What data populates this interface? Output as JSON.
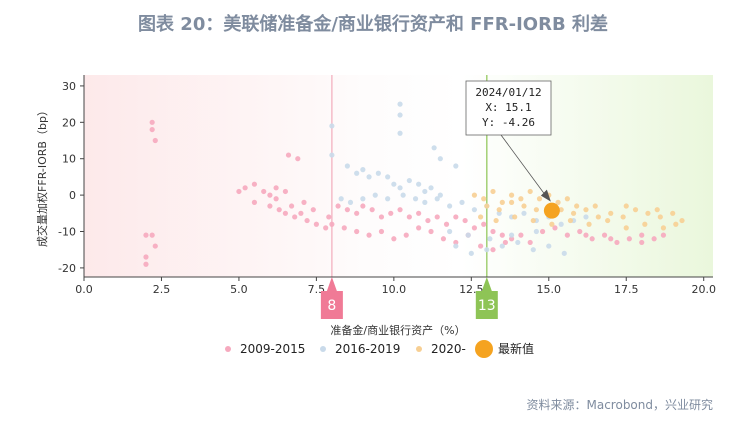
{
  "chart_data": {
    "type": "scatter",
    "title": "图表 20：美联储准备金/商业银行资产和 FFR-IORB 利差",
    "xlabel": "准备金/商业银行资产（%）",
    "ylabel": "成交量加权FFR-IORB（bp）",
    "xlim": [
      0,
      20.3
    ],
    "ylim": [
      -22.5,
      33
    ],
    "xticks": [
      "0.0",
      "2.5",
      "5.0",
      "7.5",
      "10.0",
      "12.5",
      "15.0",
      "17.5",
      "20.0"
    ],
    "yticks": [
      "30",
      "20",
      "10",
      "0",
      "-10",
      "-20"
    ],
    "grid": false,
    "legend_position": "bottom",
    "series": [
      {
        "name": "2009-2015",
        "color": "#f6a9be",
        "points": [
          [
            2.2,
            20
          ],
          [
            2.2,
            18
          ],
          [
            2.3,
            15
          ],
          [
            2.0,
            -11
          ],
          [
            2.2,
            -11
          ],
          [
            2.0,
            -17
          ],
          [
            2.0,
            -19
          ],
          [
            2.3,
            -14
          ],
          [
            5.0,
            1
          ],
          [
            5.2,
            2
          ],
          [
            5.5,
            3
          ],
          [
            5.8,
            1
          ],
          [
            6.0,
            0
          ],
          [
            6.2,
            2
          ],
          [
            6.5,
            1
          ],
          [
            6.6,
            11
          ],
          [
            6.9,
            10
          ],
          [
            5.5,
            -2
          ],
          [
            6.0,
            -3
          ],
          [
            6.3,
            -4
          ],
          [
            6.5,
            -5
          ],
          [
            6.8,
            -6
          ],
          [
            7.0,
            -5
          ],
          [
            7.2,
            -7
          ],
          [
            7.5,
            -8
          ],
          [
            7.8,
            -9
          ],
          [
            6.2,
            -1
          ],
          [
            6.7,
            -3
          ],
          [
            7.1,
            -2
          ],
          [
            7.4,
            -4
          ],
          [
            7.9,
            -6
          ],
          [
            8.0,
            -8
          ],
          [
            8.2,
            -3
          ],
          [
            8.5,
            -4
          ],
          [
            8.8,
            -5
          ],
          [
            9.0,
            -3
          ],
          [
            9.3,
            -4
          ],
          [
            9.6,
            -6
          ],
          [
            9.9,
            -5
          ],
          [
            10.2,
            -4
          ],
          [
            10.5,
            -6
          ],
          [
            10.8,
            -5
          ],
          [
            11.1,
            -7
          ],
          [
            11.4,
            -6
          ],
          [
            11.7,
            -8
          ],
          [
            12.0,
            -6
          ],
          [
            12.3,
            -7
          ],
          [
            12.6,
            -9
          ],
          [
            12.9,
            -8
          ],
          [
            13.2,
            -10
          ],
          [
            13.5,
            -11
          ],
          [
            13.8,
            -12
          ],
          [
            14.1,
            -11
          ],
          [
            14.4,
            -13
          ],
          [
            8.4,
            -9
          ],
          [
            8.8,
            -10
          ],
          [
            9.2,
            -11
          ],
          [
            9.6,
            -10
          ],
          [
            10.0,
            -12
          ],
          [
            10.4,
            -11
          ],
          [
            10.8,
            -9
          ],
          [
            11.2,
            -10
          ],
          [
            11.6,
            -12
          ],
          [
            12.0,
            -13
          ],
          [
            12.4,
            -11
          ],
          [
            12.8,
            -14
          ],
          [
            13.2,
            -15
          ],
          [
            13.6,
            -13
          ],
          [
            14.8,
            -10
          ],
          [
            15.2,
            -9
          ],
          [
            15.6,
            -11
          ],
          [
            16.0,
            -10
          ],
          [
            16.4,
            -12
          ],
          [
            16.8,
            -11
          ],
          [
            17.2,
            -13
          ],
          [
            17.6,
            -12
          ],
          [
            18.0,
            -11
          ],
          [
            18.4,
            -12
          ],
          [
            18.7,
            -11
          ],
          [
            18.0,
            -13
          ],
          [
            17.0,
            -12
          ],
          [
            16.2,
            -11
          ]
        ]
      },
      {
        "name": "2016-2019",
        "color": "#c9daea",
        "points": [
          [
            8.0,
            19
          ],
          [
            8.0,
            11
          ],
          [
            8.5,
            8
          ],
          [
            8.8,
            6
          ],
          [
            9.0,
            7
          ],
          [
            9.2,
            5
          ],
          [
            9.5,
            6
          ],
          [
            9.8,
            5
          ],
          [
            10.0,
            3
          ],
          [
            10.2,
            2
          ],
          [
            10.5,
            4
          ],
          [
            10.8,
            3
          ],
          [
            11.0,
            1
          ],
          [
            11.2,
            2
          ],
          [
            11.5,
            0
          ],
          [
            10.2,
            25
          ],
          [
            10.2,
            22
          ],
          [
            10.2,
            17
          ],
          [
            11.3,
            13
          ],
          [
            11.5,
            10
          ],
          [
            12.0,
            8
          ],
          [
            8.3,
            -1
          ],
          [
            8.6,
            -2
          ],
          [
            9.0,
            -1
          ],
          [
            9.4,
            0
          ],
          [
            9.8,
            -1
          ],
          [
            10.3,
            0
          ],
          [
            10.7,
            -1
          ],
          [
            11.0,
            -2
          ],
          [
            11.4,
            -1
          ],
          [
            11.8,
            -3
          ],
          [
            12.2,
            -2
          ],
          [
            12.6,
            -4
          ],
          [
            13.0,
            -3
          ],
          [
            13.4,
            -5
          ],
          [
            13.8,
            -6
          ],
          [
            14.2,
            -5
          ],
          [
            14.6,
            -7
          ],
          [
            15.0,
            -6
          ],
          [
            15.4,
            -8
          ],
          [
            15.8,
            -7
          ],
          [
            16.2,
            -6
          ],
          [
            12.0,
            -14
          ],
          [
            12.5,
            -16
          ],
          [
            13.0,
            -15
          ],
          [
            13.5,
            -14
          ],
          [
            14.0,
            -13
          ],
          [
            14.5,
            -15
          ],
          [
            15.0,
            -14
          ],
          [
            15.5,
            -16
          ],
          [
            11.8,
            -10
          ],
          [
            12.4,
            -11
          ],
          [
            13.1,
            -12
          ],
          [
            13.8,
            -11
          ],
          [
            14.6,
            -10
          ]
        ]
      },
      {
        "name": "2020-",
        "color": "#f7cf93",
        "points": [
          [
            12.6,
            0
          ],
          [
            12.9,
            -1
          ],
          [
            13.2,
            1
          ],
          [
            13.5,
            -2
          ],
          [
            13.8,
            0
          ],
          [
            14.1,
            -1
          ],
          [
            14.4,
            1
          ],
          [
            14.7,
            -1
          ],
          [
            15.0,
            0
          ],
          [
            15.3,
            -2
          ],
          [
            15.6,
            -1
          ],
          [
            15.9,
            -3
          ],
          [
            13.0,
            -3
          ],
          [
            13.4,
            -4
          ],
          [
            13.8,
            -2
          ],
          [
            14.2,
            -3
          ],
          [
            14.6,
            -4
          ],
          [
            15.0,
            -3
          ],
          [
            15.4,
            -4
          ],
          [
            15.8,
            -5
          ],
          [
            16.2,
            -4
          ],
          [
            16.6,
            -6
          ],
          [
            17.0,
            -5
          ],
          [
            17.4,
            -6
          ],
          [
            17.8,
            -4
          ],
          [
            18.2,
            -5
          ],
          [
            18.6,
            -6
          ],
          [
            19.0,
            -5
          ],
          [
            19.3,
            -7
          ],
          [
            16.5,
            -3
          ],
          [
            17.5,
            -3
          ],
          [
            18.5,
            -4
          ],
          [
            12.8,
            -6
          ],
          [
            13.3,
            -7
          ],
          [
            13.9,
            -6
          ],
          [
            14.5,
            -7
          ],
          [
            15.1,
            -8
          ],
          [
            15.7,
            -7
          ],
          [
            16.3,
            -8
          ],
          [
            16.9,
            -7
          ],
          [
            17.5,
            -9
          ],
          [
            18.1,
            -8
          ],
          [
            18.7,
            -9
          ],
          [
            19.1,
            -8
          ]
        ]
      }
    ],
    "latest": {
      "name": "最新值",
      "x": 15.1,
      "y": -4.26,
      "date": "2024/01/12",
      "color": "#f5a320"
    },
    "markers": [
      {
        "label": "8",
        "x": 8,
        "color": "#f07a96",
        "line_color": "#f4b7c5"
      },
      {
        "label": "13",
        "x": 13,
        "color": "#8ec456",
        "line_color": "#9ccc6a"
      }
    ],
    "tooltip": {
      "date": "2024/01/12",
      "x_line": "X: 15.1",
      "y_line": "Y: -4.26"
    }
  },
  "source": "资料来源：Macrobond，兴业研究"
}
